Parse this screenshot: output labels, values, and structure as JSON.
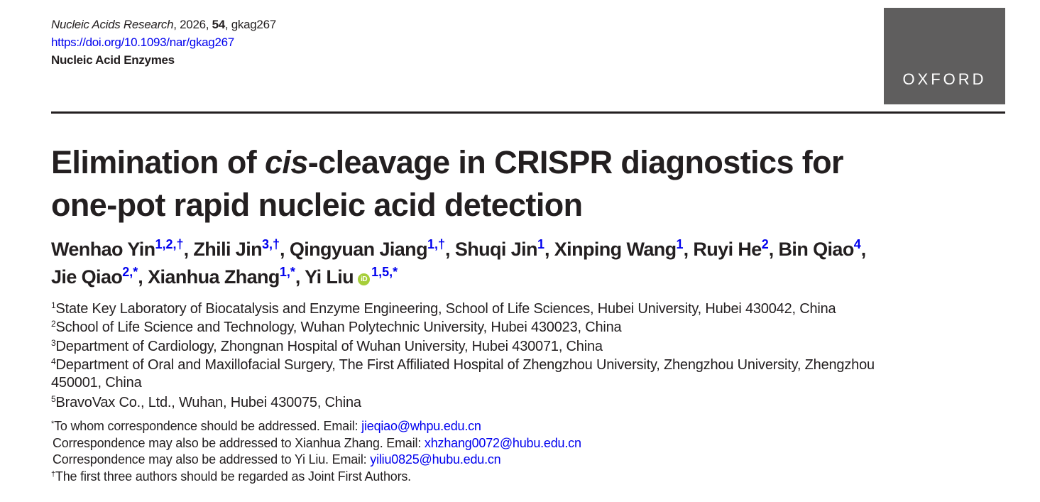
{
  "header": {
    "journal": "Nucleic Acids Research",
    "year_sep": ", 2026, ",
    "volume": "54",
    "article_id": ", gkag267",
    "doi": "https://doi.org/10.1093/nar/gkag267",
    "section": "Nucleic Acid Enzymes",
    "logo": "OXFORD"
  },
  "title": {
    "line1_pre": "Elimination of ",
    "line1_italic": "cis",
    "line1_post": "-cleavage in CRISPR diagnostics for",
    "line2": "one-pot rapid nucleic acid detection"
  },
  "authors": {
    "line1": [
      {
        "name": "Wenhao Yin",
        "sup": "1,2,†",
        "sep": ", "
      },
      {
        "name": "Zhili Jin",
        "sup": "3,†",
        "sep": ", "
      },
      {
        "name": "Qingyuan Jiang",
        "sup": "1,†",
        "sep": ", "
      },
      {
        "name": "Shuqi Jin",
        "sup": "1",
        "sep": ", "
      },
      {
        "name": "Xinping Wang",
        "sup": "1",
        "sep": ", "
      },
      {
        "name": "Ruyi He",
        "sup": "2",
        "sep": ", "
      },
      {
        "name": "Bin Qiao",
        "sup": "4",
        "sep": ","
      }
    ],
    "line2": [
      {
        "name": "Jie Qiao",
        "sup": "2,*",
        "sep": ", "
      },
      {
        "name": "Xianhua Zhang",
        "sup": "1,*",
        "sep": ", "
      },
      {
        "name": "Yi Liu",
        "sup": "1,5,*",
        "sep": "",
        "orcid": "iD"
      }
    ]
  },
  "affiliations": [
    {
      "num": "1",
      "text": "State Key Laboratory of Biocatalysis and Enzyme Engineering, School of Life Sciences, Hubei University, Hubei 430042, China"
    },
    {
      "num": "2",
      "text": "School of Life Science and Technology, Wuhan Polytechnic University, Hubei 430023, China"
    },
    {
      "num": "3",
      "text": "Department of Cardiology, Zhongnan Hospital of Wuhan University, Hubei 430071, China"
    },
    {
      "num": "4",
      "text": "Department of Oral and Maxillofacial Surgery, The First Affiliated Hospital of Zhengzhou University, Zhengzhou University, Zhengzhou",
      "cont": "450001, China"
    },
    {
      "num": "5",
      "text": "BravoVax Co., Ltd., Wuhan, Hubei 430075, China"
    }
  ],
  "correspondence": [
    {
      "mark": "*",
      "text": "To whom correspondence should be addressed. Email: ",
      "email": "jieqiao@whpu.edu.cn"
    },
    {
      "mark": "",
      "text": "Correspondence may also be addressed to Xianhua Zhang. Email: ",
      "email": "xhzhang0072@hubu.edu.cn"
    },
    {
      "mark": "",
      "text": "Correspondence may also be addressed to Yi Liu. Email: ",
      "email": "yiliu0825@hubu.edu.cn"
    },
    {
      "mark": "†",
      "text": "The first three authors should be regarded as Joint First Authors.",
      "email": ""
    }
  ]
}
